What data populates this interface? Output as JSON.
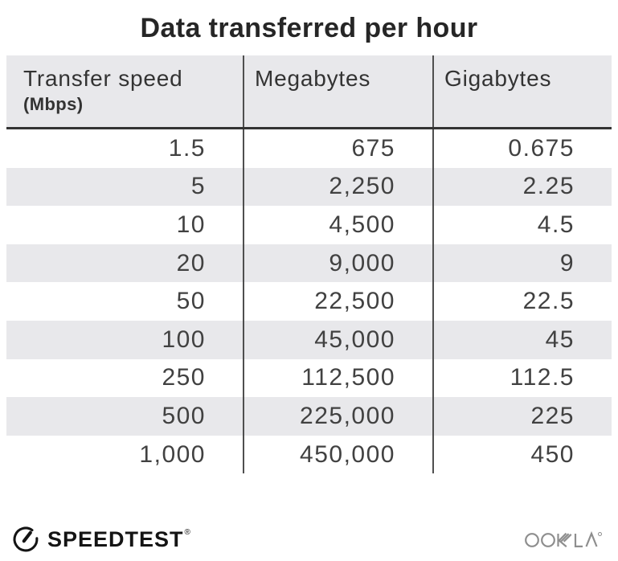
{
  "title": "Data transferred per hour",
  "chart_data": {
    "type": "table",
    "title": "Data transferred per hour",
    "columns": [
      "Transfer speed (Mbps)",
      "Megabytes",
      "Gigabytes"
    ],
    "rows_numeric": [
      [
        1.5,
        675,
        0.675
      ],
      [
        5,
        2250,
        2.25
      ],
      [
        10,
        4500,
        4.5
      ],
      [
        20,
        9000,
        9
      ],
      [
        50,
        22500,
        22.5
      ],
      [
        100,
        45000,
        45
      ],
      [
        250,
        112500,
        112.5
      ],
      [
        500,
        225000,
        225
      ],
      [
        1000,
        450000,
        450
      ]
    ],
    "layout": {
      "striped_rows": true,
      "stripe_on": "even rows (2nd, 4th, ...)",
      "cell_alignment": "right",
      "column_dividers": true
    }
  },
  "table": {
    "header": {
      "col1_label": "Transfer speed",
      "col1_sublabel": "(Mbps)",
      "col2_label": "Megabytes",
      "col3_label": "Gigabytes"
    },
    "rows": [
      [
        "1.5",
        "675",
        "0.675"
      ],
      [
        "5",
        "2,250",
        "2.25"
      ],
      [
        "10",
        "4,500",
        "4.5"
      ],
      [
        "20",
        "9,000",
        "9"
      ],
      [
        "50",
        "22,500",
        "22.5"
      ],
      [
        "100",
        "45,000",
        "45"
      ],
      [
        "250",
        "112,500",
        "112.5"
      ],
      [
        "500",
        "225,000",
        "225"
      ],
      [
        "1,000",
        "450,000",
        "450"
      ]
    ]
  },
  "footer": {
    "speedtest_label": "SPEEDTEST",
    "speedtest_trademark": "®",
    "ookla_label": "OOKLA",
    "gauge_icon": "speedtest-gauge-icon",
    "ookla_icon": "ookla-wordmark-icon"
  },
  "colors": {
    "background": "#ffffff",
    "header_bg": "#e8e8eb",
    "stripe_bg": "#e8e8eb",
    "header_underline": "#333333",
    "column_divider": "#4f4f4f",
    "title_text": "#262626",
    "header_text": "#333333",
    "data_text": "#414141",
    "speedtest_black": "#141414",
    "ookla_gray": "#8e8e8e"
  }
}
